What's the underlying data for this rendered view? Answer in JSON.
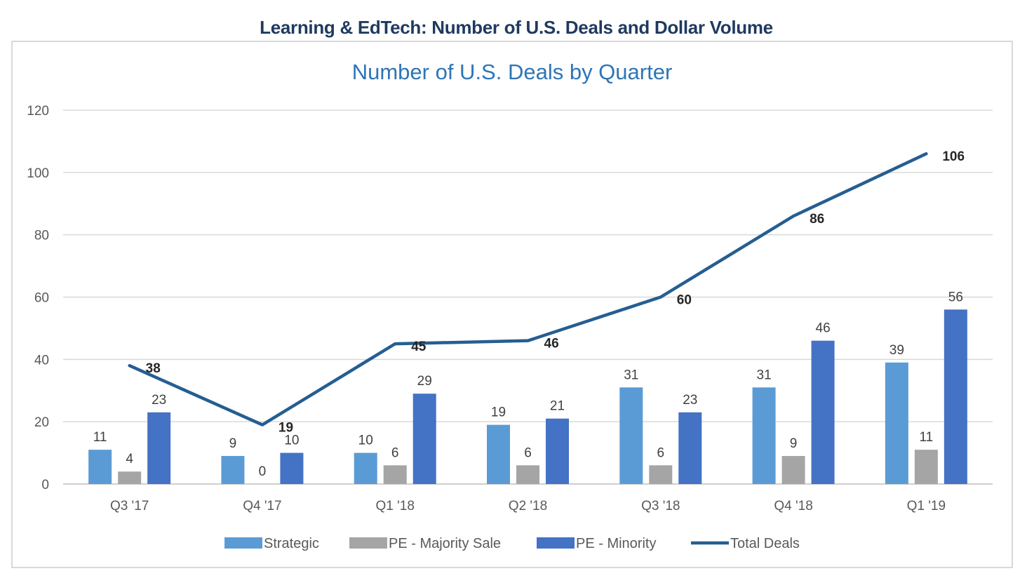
{
  "page_title": "Learning & EdTech: Number of U.S. Deals and Dollar Volume",
  "chart_data": {
    "type": "bar",
    "title": "Number of U.S. Deals by Quarter",
    "xlabel": "",
    "ylabel": "",
    "ylim": [
      0,
      120
    ],
    "yticks": [
      0,
      20,
      40,
      60,
      80,
      100,
      120
    ],
    "grid": true,
    "legend_position": "bottom",
    "categories": [
      "Q3 '17",
      "Q4 '17",
      "Q1 '18",
      "Q2 '18",
      "Q3 '18",
      "Q4 '18",
      "Q1 '19"
    ],
    "series": [
      {
        "name": "Strategic",
        "type": "bar",
        "color": "#5b9bd5",
        "values": [
          11,
          9,
          10,
          19,
          31,
          31,
          39
        ]
      },
      {
        "name": "PE - Majority Sale",
        "type": "bar",
        "color": "#a5a5a5",
        "values": [
          4,
          0,
          6,
          6,
          6,
          9,
          11
        ]
      },
      {
        "name": "PE - Minority",
        "type": "bar",
        "color": "#4472c4",
        "values": [
          23,
          10,
          29,
          21,
          23,
          46,
          56
        ]
      },
      {
        "name": "Total Deals",
        "type": "line",
        "color": "#255e91",
        "values": [
          38,
          19,
          45,
          46,
          60,
          86,
          106
        ]
      }
    ]
  }
}
